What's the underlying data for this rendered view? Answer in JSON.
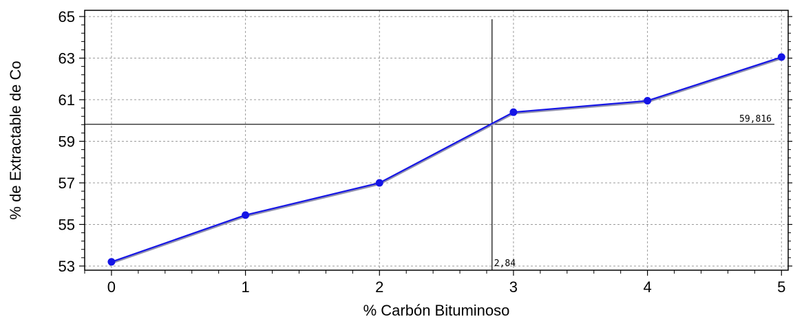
{
  "chart_data": {
    "type": "line",
    "title": "",
    "xlabel": "% Carbón Bituminoso",
    "ylabel": "% de Extractable de Co",
    "x": [
      0,
      1,
      2,
      3,
      4,
      5
    ],
    "x_ticks": [
      "0",
      "1",
      "2",
      "3",
      "4",
      "5"
    ],
    "y_ticks": [
      "53",
      "55",
      "57",
      "59",
      "61",
      "63",
      "65"
    ],
    "xlim": [
      -0.2,
      5.05
    ],
    "ylim": [
      52.8,
      65.3
    ],
    "grid": true,
    "series": [
      {
        "values": [
          53.2,
          55.45,
          57.0,
          60.4,
          60.95,
          63.05
        ],
        "color": "#1515e6"
      }
    ],
    "cursor": {
      "x": 2.84,
      "y": 59.816,
      "x_label": "2,84",
      "y_label": "59,816"
    }
  }
}
